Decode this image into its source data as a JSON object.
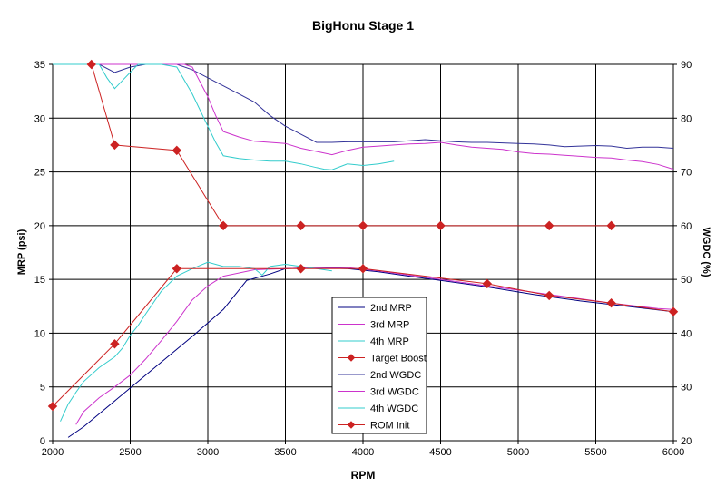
{
  "chart_data": {
    "type": "line",
    "title": "BigHonu Stage 1",
    "xlabel": "RPM",
    "ylabel": "MRP (psi)",
    "y2label": "WGDC (%)",
    "xlim": [
      2000,
      6000
    ],
    "ylim": [
      0,
      35
    ],
    "y2lim": [
      20,
      90
    ],
    "xticks": [
      "2000",
      "2500",
      "3000",
      "3500",
      "4000",
      "4500",
      "5000",
      "5500",
      "6000"
    ],
    "yticks": [
      "0",
      "5",
      "10",
      "15",
      "20",
      "25",
      "30",
      "35"
    ],
    "y2ticks": [
      "20",
      "30",
      "40",
      "50",
      "60",
      "70",
      "80",
      "90"
    ],
    "grid": true,
    "legend_position": "center-bottom",
    "series": [
      {
        "name": "2nd MRP",
        "axis": "left",
        "color": "#000080",
        "marker": "none",
        "x": [
          2100,
          2200,
          2300,
          2500,
          2700,
          2900,
          3100,
          3250,
          3400,
          3500,
          3700,
          3900,
          4100,
          4300,
          4500,
          4800,
          5100,
          5400,
          5700,
          6000
        ],
        "y": [
          0.3,
          1.3,
          2.5,
          4.9,
          7.3,
          9.7,
          12.2,
          14.9,
          15.5,
          16.0,
          16.1,
          16.0,
          15.7,
          15.3,
          14.9,
          14.3,
          13.6,
          13.0,
          12.5,
          12.0
        ]
      },
      {
        "name": "3rd MRP",
        "axis": "left",
        "color": "#cc33cc",
        "marker": "none",
        "x": [
          2150,
          2200,
          2300,
          2400,
          2500,
          2600,
          2700,
          2800,
          2900,
          3000,
          3100,
          3300,
          3500,
          3700,
          3900,
          4100,
          4400,
          4700,
          5000,
          5300,
          5600,
          5900,
          6000
        ],
        "y": [
          1.5,
          2.7,
          4.0,
          5.0,
          6.1,
          7.6,
          9.3,
          11.1,
          13.1,
          14.4,
          15.3,
          15.9,
          16.0,
          16.1,
          16.1,
          15.8,
          15.2,
          14.6,
          14.0,
          13.4,
          12.8,
          12.3,
          12.2
        ]
      },
      {
        "name": "4th MRP",
        "axis": "left",
        "color": "#33cccc",
        "marker": "none",
        "x": [
          2050,
          2100,
          2150,
          2200,
          2300,
          2400,
          2450,
          2500,
          2550,
          2600,
          2700,
          2800,
          2900,
          3000,
          3100,
          3200,
          3300,
          3350,
          3400,
          3500,
          3600,
          3700,
          3800
        ],
        "y": [
          1.8,
          3.4,
          4.5,
          5.5,
          6.8,
          7.8,
          8.6,
          9.8,
          10.7,
          11.8,
          13.9,
          15.3,
          16.0,
          16.6,
          16.2,
          16.2,
          16.0,
          15.4,
          16.2,
          16.4,
          16.2,
          16.0,
          15.8
        ]
      },
      {
        "name": "Target Boost",
        "axis": "left",
        "color": "#cc2222",
        "marker": "diamond",
        "x": [
          2000,
          2400,
          2800,
          3600,
          4000,
          4800,
          5200,
          5600,
          6000
        ],
        "y": [
          3.2,
          9.0,
          16.0,
          16.0,
          16.0,
          14.6,
          13.5,
          12.8,
          12.0
        ]
      },
      {
        "name": "2nd WGDC",
        "axis": "right",
        "color": "#333399",
        "marker": "none",
        "x": [
          2000,
          2200,
          2300,
          2400,
          2500,
          2600,
          2700,
          2800,
          2900,
          3000,
          3100,
          3200,
          3300,
          3400,
          3500,
          3600,
          3700,
          3800,
          3900,
          4000,
          4100,
          4200,
          4300,
          4400,
          4500,
          4600,
          4700,
          4800,
          4900,
          5000,
          5100,
          5200,
          5300,
          5400,
          5500,
          5600,
          5700,
          5800,
          5900,
          6000
        ],
        "y": [
          90,
          90,
          90,
          88.5,
          89.5,
          90,
          90,
          90,
          89,
          87.5,
          86,
          84.5,
          83,
          80.5,
          78.5,
          77,
          75.5,
          75.5,
          75.6,
          75.6,
          75.6,
          75.6,
          75.8,
          76,
          75.8,
          75.6,
          75.5,
          75.5,
          75.4,
          75.3,
          75.2,
          75.0,
          74.7,
          74.8,
          74.9,
          74.8,
          74.4,
          74.6,
          74.6,
          74.4
        ]
      },
      {
        "name": "3rd WGDC",
        "axis": "right",
        "color": "#cc33cc",
        "marker": "none",
        "x": [
          2000,
          2400,
          2500,
          2600,
          2700,
          2800,
          2850,
          2900,
          3000,
          3050,
          3100,
          3200,
          3300,
          3400,
          3500,
          3600,
          3700,
          3800,
          3900,
          4000,
          4100,
          4200,
          4300,
          4400,
          4500,
          4600,
          4700,
          4800,
          4900,
          5000,
          5100,
          5200,
          5300,
          5400,
          5500,
          5600,
          5700,
          5800,
          5900,
          6000
        ],
        "y": [
          90,
          90,
          90,
          90,
          90,
          90,
          90,
          89.5,
          84,
          80.5,
          77.5,
          76.5,
          75.7,
          75.5,
          75.3,
          74.4,
          73.8,
          73.2,
          74,
          74.6,
          74.8,
          75,
          75.2,
          75.3,
          75.5,
          75,
          74.6,
          74.4,
          74.2,
          73.7,
          73.4,
          73.3,
          73.1,
          72.9,
          72.7,
          72.6,
          72.2,
          71.9,
          71.4,
          70.5
        ]
      },
      {
        "name": "4th WGDC",
        "axis": "right",
        "color": "#33cccc",
        "marker": "none",
        "x": [
          2000,
          2300,
          2350,
          2400,
          2450,
          2500,
          2550,
          2600,
          2700,
          2800,
          2900,
          2950,
          3000,
          3050,
          3100,
          3200,
          3300,
          3400,
          3500,
          3600,
          3700,
          3750,
          3800,
          3900,
          4000,
          4100,
          4200
        ],
        "y": [
          90,
          90,
          87.5,
          85.5,
          87,
          88.5,
          90,
          90,
          90,
          89.5,
          84.5,
          81.5,
          78.5,
          75.5,
          73,
          72.5,
          72.2,
          72,
          72,
          71.5,
          70.8,
          70.5,
          70.4,
          71.5,
          71.2,
          71.5,
          72
        ]
      },
      {
        "name": "ROM Init",
        "axis": "right",
        "color": "#cc2222",
        "marker": "diamond",
        "x": [
          2250,
          2400,
          2800,
          3100,
          3600,
          4000,
          4500,
          5200,
          5600
        ],
        "y": [
          90,
          75,
          74,
          60,
          60,
          60,
          60,
          60,
          60
        ]
      }
    ]
  }
}
